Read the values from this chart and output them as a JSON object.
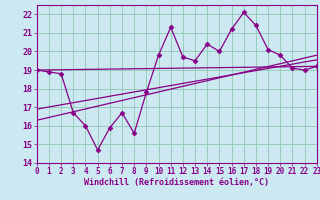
{
  "title": "",
  "xlabel": "Windchill (Refroidissement éolien,°C)",
  "ylabel": "",
  "bg_color": "#cce8f0",
  "grid_color": "#99ccbb",
  "line_color": "#880088",
  "xlim": [
    0,
    23
  ],
  "ylim": [
    14,
    22.5
  ],
  "xticks": [
    0,
    1,
    2,
    3,
    4,
    5,
    6,
    7,
    8,
    9,
    10,
    11,
    12,
    13,
    14,
    15,
    16,
    17,
    18,
    19,
    20,
    21,
    22,
    23
  ],
  "yticks": [
    14,
    15,
    16,
    17,
    18,
    19,
    20,
    21,
    22
  ],
  "zigzag_x": [
    0,
    1,
    2,
    3,
    4,
    5,
    6,
    7,
    8,
    9,
    10,
    11,
    12,
    13,
    14,
    15,
    16,
    17,
    18,
    19,
    20,
    21,
    22,
    23
  ],
  "zigzag_y": [
    19.0,
    18.9,
    18.8,
    16.7,
    16.0,
    14.7,
    15.9,
    16.7,
    15.6,
    17.8,
    19.8,
    21.3,
    19.7,
    19.5,
    20.4,
    20.0,
    21.2,
    22.1,
    21.4,
    20.1,
    19.8,
    19.1,
    19.0,
    19.2
  ],
  "line1_x": [
    0,
    23
  ],
  "line1_y": [
    19.0,
    19.2
  ],
  "line2_x": [
    0,
    23
  ],
  "line2_y": [
    16.3,
    19.8
  ],
  "line3_x": [
    0,
    23
  ],
  "line3_y": [
    16.9,
    19.55
  ]
}
